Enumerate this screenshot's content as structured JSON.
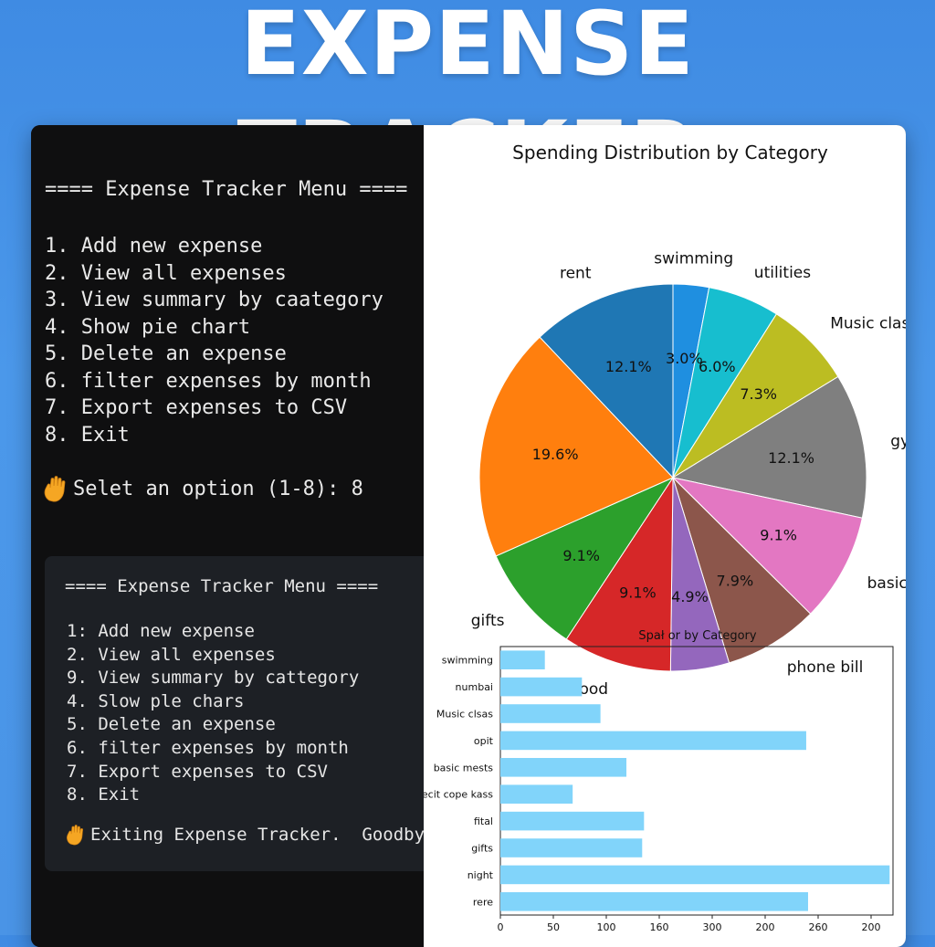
{
  "banner": {
    "title": "EXPENSE TRACKER"
  },
  "terminal": {
    "header": "==== Expense Tracker Menu ====",
    "menu": [
      "1. Add new expense",
      "2. View all expenses",
      "3. View summary by caategory",
      "4. Show pie chart",
      "5. Delete an expense",
      "6. filter expenses by month",
      "7. Export expenses to CSV",
      "8. Exit"
    ],
    "prompt": "Selet an option (1-8): 8",
    "prompt_icon": "waving-hand-icon"
  },
  "panel": {
    "header": "==== Expense Tracker Menu ====",
    "menu": [
      "1: Add new expense",
      "2. View all expenses",
      "9. View summary by cattegory",
      "4. Slow ple chars",
      "5. Delete an expense",
      "6. filter expenses by month",
      "7. Export expenses to CSV",
      "8. Exit"
    ],
    "exit_message": "Exiting Expense Tracker.  Goodbye",
    "exit_icon": "waving-hand-icon"
  },
  "chart_data": [
    {
      "type": "pie",
      "title": "Spending Distribution by Category",
      "categories": [
        "swimming",
        "utilities",
        "Music class",
        "gym",
        "basic need",
        "phone bill",
        "",
        "food",
        "gifts",
        "",
        "rent"
      ],
      "values": [
        3.0,
        6.0,
        7.3,
        12.1,
        9.1,
        7.9,
        4.9,
        9.1,
        9.1,
        19.6,
        12.1
      ],
      "value_labels": [
        "3.0%",
        "6.0%",
        "7.3%",
        "12.1%",
        "9.1%",
        "7.9%",
        "4.9%",
        "9.1%",
        "9.1%",
        "19.6%",
        "12.1%"
      ],
      "colors": [
        "#1f8fe0",
        "#17becf",
        "#bcbd22",
        "#7f7f7f",
        "#e377c2",
        "#8c564b",
        "#9467bd",
        "#d62728",
        "#2ca02c",
        "#ff7f0e",
        "#1f77b4"
      ]
    },
    {
      "type": "bar",
      "orientation": "horizontal",
      "title": "Spał or by Category",
      "categories": [
        "swimming",
        "numbai",
        "Music clsas",
        "opit",
        "basic mests",
        "eecit cope kass",
        "fital",
        "gifts",
        "night",
        "rere"
      ],
      "values": [
        48,
        88,
        108,
        330,
        136,
        78,
        155,
        153,
        420,
        332
      ],
      "xticks": [
        "0",
        "50",
        "100",
        "160",
        "300",
        "200",
        "260",
        "200"
      ],
      "xlim": [
        0,
        400
      ],
      "color": "#81d4fa"
    }
  ]
}
